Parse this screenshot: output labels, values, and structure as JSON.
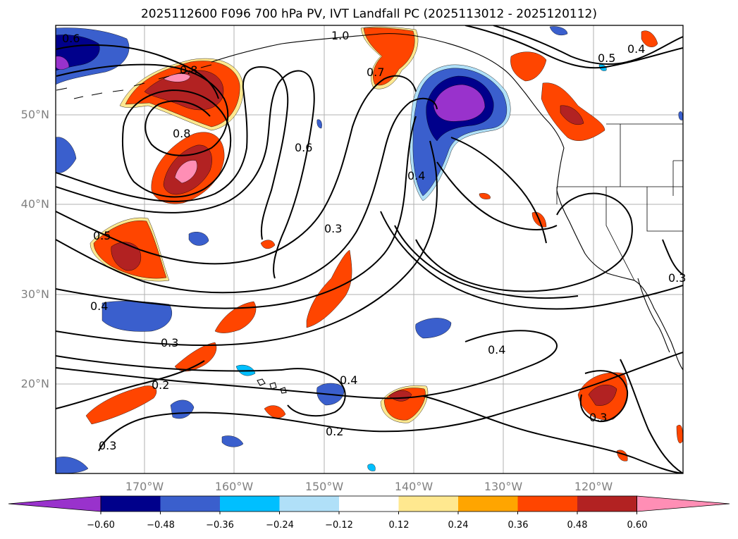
{
  "title": "2025112600 F096 700 hPa PV, IVT Landfall PC (2025113012 - 2025120112)",
  "axes": {
    "lat_ticks": [
      "50°N",
      "40°N",
      "30°N",
      "20°N"
    ],
    "lon_ticks": [
      "170°W",
      "160°W",
      "150°W",
      "140°W",
      "130°W",
      "120°W"
    ]
  },
  "contour_labels": [
    "0.6",
    "1.0",
    "0.7",
    "0.4",
    "0.5",
    "0.8",
    "0.8",
    "0.6",
    "0.4",
    "0.3",
    "0.5",
    "0.4",
    "0.3",
    "0.2",
    "0.3",
    "0.4",
    "0.4",
    "0.2",
    "0.3",
    "0.3"
  ],
  "colorbar": {
    "ticks": [
      "−0.60",
      "−0.48",
      "−0.36",
      "−0.24",
      "−0.12",
      "0.12",
      "0.24",
      "0.36",
      "0.48",
      "0.60"
    ],
    "colors": [
      "#9932cc",
      "#00008b",
      "#3a5fcd",
      "#00bfff",
      "#b0e0f8",
      "#ffffff",
      "#ffe88f",
      "#ffa500",
      "#ff4500",
      "#b22222",
      "#ff8eb5"
    ]
  }
}
